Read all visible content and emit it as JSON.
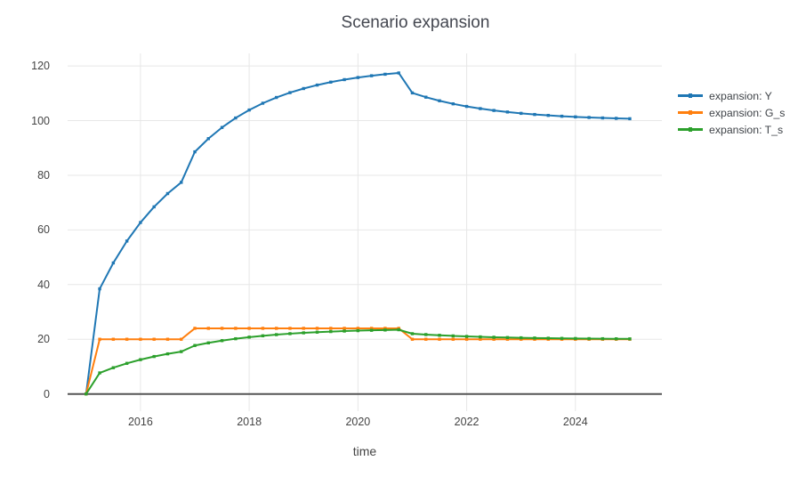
{
  "figure": {
    "title": "Scenario expansion",
    "x_axis_title": "time"
  },
  "chart_data": {
    "type": "line",
    "mode": "lines+markers",
    "title": "Scenario expansion",
    "xlabel": "time",
    "ylabel": "",
    "grid": true,
    "legend_position": "right",
    "x_range": [
      2014.66,
      2025.59
    ],
    "y_range": [
      -6.3,
      124.6
    ],
    "x_ticks": [
      2016,
      2018,
      2020,
      2022,
      2024
    ],
    "y_ticks": [
      0,
      20,
      40,
      60,
      80,
      100,
      120
    ],
    "colors": {
      "grid": "#e7e7e7",
      "zeroline": "#555555",
      "text": "#444444"
    },
    "x": [
      2015.0,
      2015.25,
      2015.5,
      2015.75,
      2016.0,
      2016.25,
      2016.5,
      2016.75,
      2017.0,
      2017.25,
      2017.5,
      2017.75,
      2018.0,
      2018.25,
      2018.5,
      2018.75,
      2019.0,
      2019.25,
      2019.5,
      2019.75,
      2020.0,
      2020.25,
      2020.5,
      2020.75,
      2021.0,
      2021.25,
      2021.5,
      2021.75,
      2022.0,
      2022.25,
      2022.5,
      2022.75,
      2023.0,
      2023.25,
      2023.5,
      2023.75,
      2024.0,
      2024.25,
      2024.5,
      2024.75,
      2025.0
    ],
    "series": [
      {
        "name": "expansion: Y",
        "color": "#1f77b4",
        "values": [
          0,
          38.46,
          47.93,
          55.94,
          62.72,
          68.45,
          73.31,
          77.41,
          88.58,
          93.42,
          97.5,
          100.97,
          103.89,
          106.37,
          108.47,
          110.24,
          111.74,
          113.01,
          114.09,
          115.0,
          115.77,
          116.42,
          116.97,
          117.44,
          110.14,
          108.58,
          107.26,
          106.14,
          105.2,
          104.4,
          103.72,
          103.15,
          102.66,
          102.25,
          101.91,
          101.61,
          101.37,
          101.16,
          100.98,
          100.83,
          100.7
        ]
      },
      {
        "name": "expansion: G_s",
        "color": "#ff7f0e",
        "values": [
          0,
          20,
          20,
          20,
          20,
          20,
          20,
          20,
          24,
          24,
          24,
          24,
          24,
          24,
          24,
          24,
          24,
          24,
          24,
          24,
          24,
          24,
          24,
          24,
          20,
          20,
          20,
          20,
          20,
          20,
          20,
          20,
          20,
          20,
          20,
          20,
          20,
          20,
          20,
          20,
          20
        ]
      },
      {
        "name": "expansion: T_s",
        "color": "#2ca02c",
        "values": [
          0,
          7.69,
          9.59,
          11.19,
          12.54,
          13.69,
          14.66,
          15.48,
          17.72,
          18.68,
          19.5,
          20.19,
          20.78,
          21.27,
          21.69,
          22.05,
          22.35,
          22.6,
          22.82,
          23.0,
          23.15,
          23.28,
          23.39,
          23.49,
          22.03,
          21.72,
          21.45,
          21.23,
          21.04,
          20.88,
          20.74,
          20.63,
          20.53,
          20.45,
          20.38,
          20.32,
          20.27,
          20.23,
          20.2,
          20.17,
          20.14
        ]
      }
    ]
  }
}
